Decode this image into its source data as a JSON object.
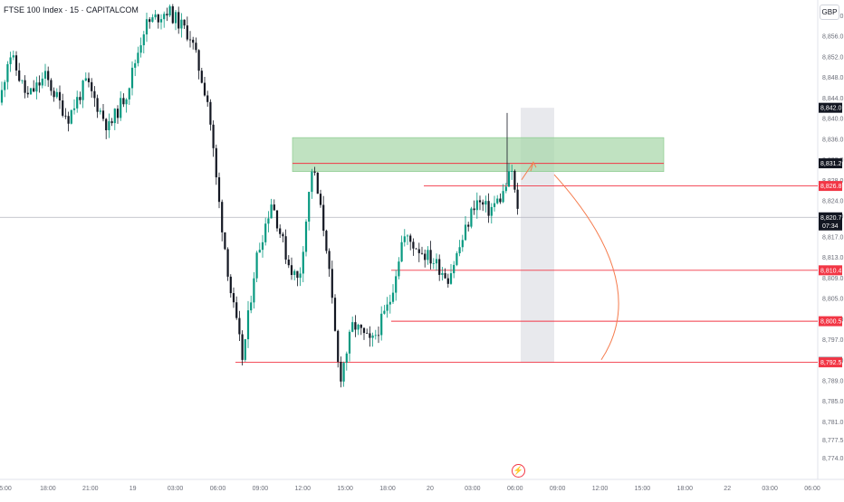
{
  "chart_data": {
    "type": "candlestick",
    "title": "FTSE 100 Index · 15 · CAPITALCOM",
    "currency": "GBP",
    "ylim": [
      8771.5,
      8861.2
    ],
    "y_ticks": [
      "8,774.0",
      "8,777.5",
      "8,781.0",
      "8,785.0",
      "8,789.0",
      "8,793.0",
      "8,797.0",
      "8,801.0",
      "8,805.0",
      "8,809.0",
      "8,813.0",
      "8,817.0",
      "8,821.0",
      "8,824.0",
      "8,828.0",
      "8,832.0",
      "8,836.0",
      "8,840.0",
      "8,844.0",
      "8,848.0",
      "8,852.0",
      "8,856.0",
      "8,860.0"
    ],
    "x_ticks": [
      "5:00",
      "18:00",
      "21:00",
      "19",
      "03:00",
      "06:00",
      "09:00",
      "12:00",
      "15:00",
      "18:00",
      "20",
      "03:00",
      "06:00",
      "09:00",
      "12:00",
      "15:00",
      "18:00",
      "22",
      "03:00",
      "06:00"
    ],
    "price_levels": [
      {
        "label": "8,842.0",
        "value": 8842.0,
        "color": "#131722",
        "line": false
      },
      {
        "label": "8,831.2",
        "value": 8831.2,
        "color": "#131722",
        "line": false
      },
      {
        "label": "8,826.8",
        "value": 8826.8,
        "color": "#f23645",
        "line": true
      },
      {
        "label": "8,820.7",
        "value": 8820.7,
        "color": "#131722",
        "line": true,
        "countdown": "07:34"
      },
      {
        "label": "8,810.4",
        "value": 8810.4,
        "color": "#f23645",
        "line": true
      },
      {
        "label": "8,800.5",
        "value": 8800.5,
        "color": "#f23645",
        "line": true
      },
      {
        "label": "8,792.6",
        "value": 8792.6,
        "color": "#787b86",
        "line": false
      },
      {
        "label": "8,792.5",
        "value": 8792.5,
        "color": "#f23645",
        "line": true
      }
    ],
    "resistance_zone": [
      8829.6,
      8836.2
    ],
    "resistance_line": 8831.2,
    "projection_box": [
      8792.5,
      8842.0
    ],
    "colors": {
      "up": "#089981",
      "down": "#131722",
      "zone": "#a5d6a7",
      "level": "#f23645",
      "box": "#d1d4dc"
    }
  }
}
